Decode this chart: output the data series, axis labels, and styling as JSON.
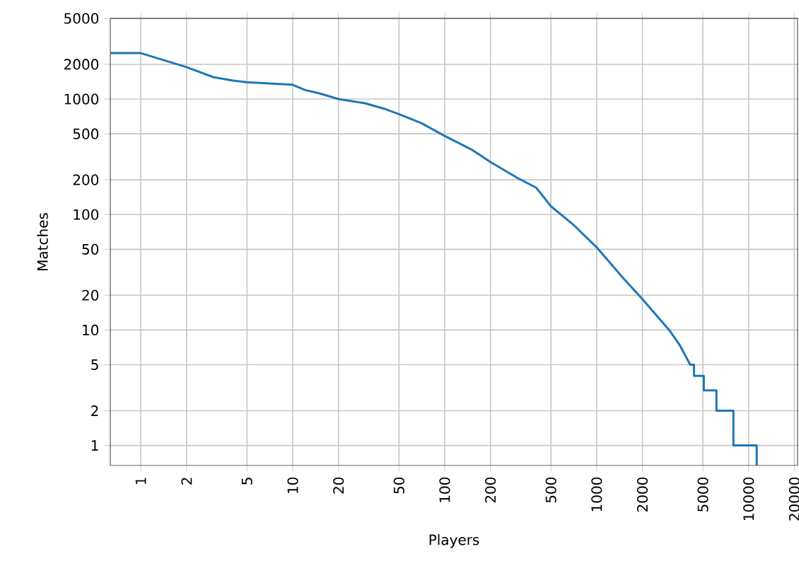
{
  "chart_data": {
    "type": "line",
    "xlabel": "Players",
    "ylabel": "Matches",
    "log": "xy",
    "grid": true,
    "marker": "none",
    "line_style": "solid",
    "xlim": [
      0.63,
      21000
    ],
    "ylim": [
      0.67,
      5000
    ],
    "xticks": [
      1,
      2,
      5,
      10,
      20,
      50,
      100,
      200,
      500,
      1000,
      2000,
      5000,
      10000,
      20000
    ],
    "yticks": [
      1,
      2,
      5,
      10,
      20,
      50,
      100,
      200,
      500,
      1000,
      2000,
      5000
    ],
    "series": [
      {
        "color": "#1f77b4",
        "x": [
          0.63,
          1,
          2,
          3,
          4,
          5,
          10,
          12,
          15,
          20,
          30,
          40,
          50,
          70,
          100,
          150,
          200,
          300,
          400,
          500,
          700,
          1000,
          1500,
          2000,
          3000,
          3500,
          4130,
          4370,
          4370,
          5070,
          5070,
          6140,
          6140,
          7940,
          7940,
          11300,
          11300
        ],
        "values": [
          2500,
          2500,
          1890,
          1550,
          1450,
          1400,
          1330,
          1200,
          1120,
          1000,
          920,
          825,
          740,
          620,
          480,
          366,
          285,
          208,
          171,
          118,
          82,
          52,
          28,
          18.5,
          10,
          7.5,
          5,
          5,
          4,
          4,
          3,
          3,
          2,
          2,
          1,
          1,
          0.67
        ]
      }
    ]
  }
}
